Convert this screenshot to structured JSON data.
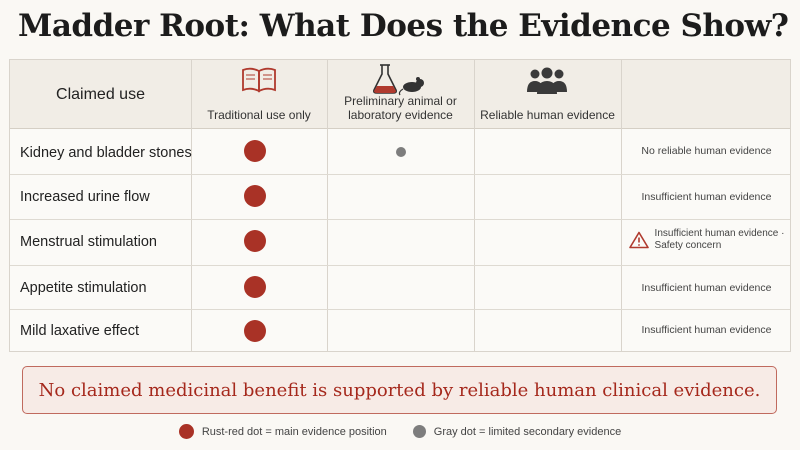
{
  "title": "Madder Root: What Does the Evidence Show?",
  "table": {
    "header": {
      "claimed_use": "Claimed use",
      "col_traditional": "Traditional use only",
      "col_preliminary_line1": "Preliminary animal or",
      "col_preliminary_line2": "laboratory evidence",
      "col_reliable": "Reliable human evidence"
    },
    "rows": [
      {
        "label": "Kidney and bladder stones",
        "traditional": true,
        "preliminary": true,
        "status": "No reliable human evidence"
      },
      {
        "label": "Increased urine flow",
        "traditional": true,
        "preliminary": false,
        "status": "Insufficient human evidence"
      },
      {
        "label": "Menstrual stimulation",
        "traditional": true,
        "preliminary": false,
        "status_line1": "Insufficient human evidence ·",
        "status_line2": "Safety concern",
        "warning": true
      },
      {
        "label": "Appetite stimulation",
        "traditional": true,
        "preliminary": false,
        "status": "Insufficient human evidence"
      },
      {
        "label": "Mild laxative effect",
        "traditional": true,
        "preliminary": false,
        "status": "Insufficient human evidence"
      }
    ]
  },
  "banner": "No claimed medicinal benefit is supported by reliable human clinical evidence.",
  "legend": {
    "main": "Rust-red dot = main evidence position",
    "secondary": "Gray dot = limited secondary evidence"
  },
  "colors": {
    "main_dot": "#a93226",
    "secondary_dot": "#7d7d7d",
    "banner_text": "#a5281c",
    "warning": "#b03a2e"
  }
}
